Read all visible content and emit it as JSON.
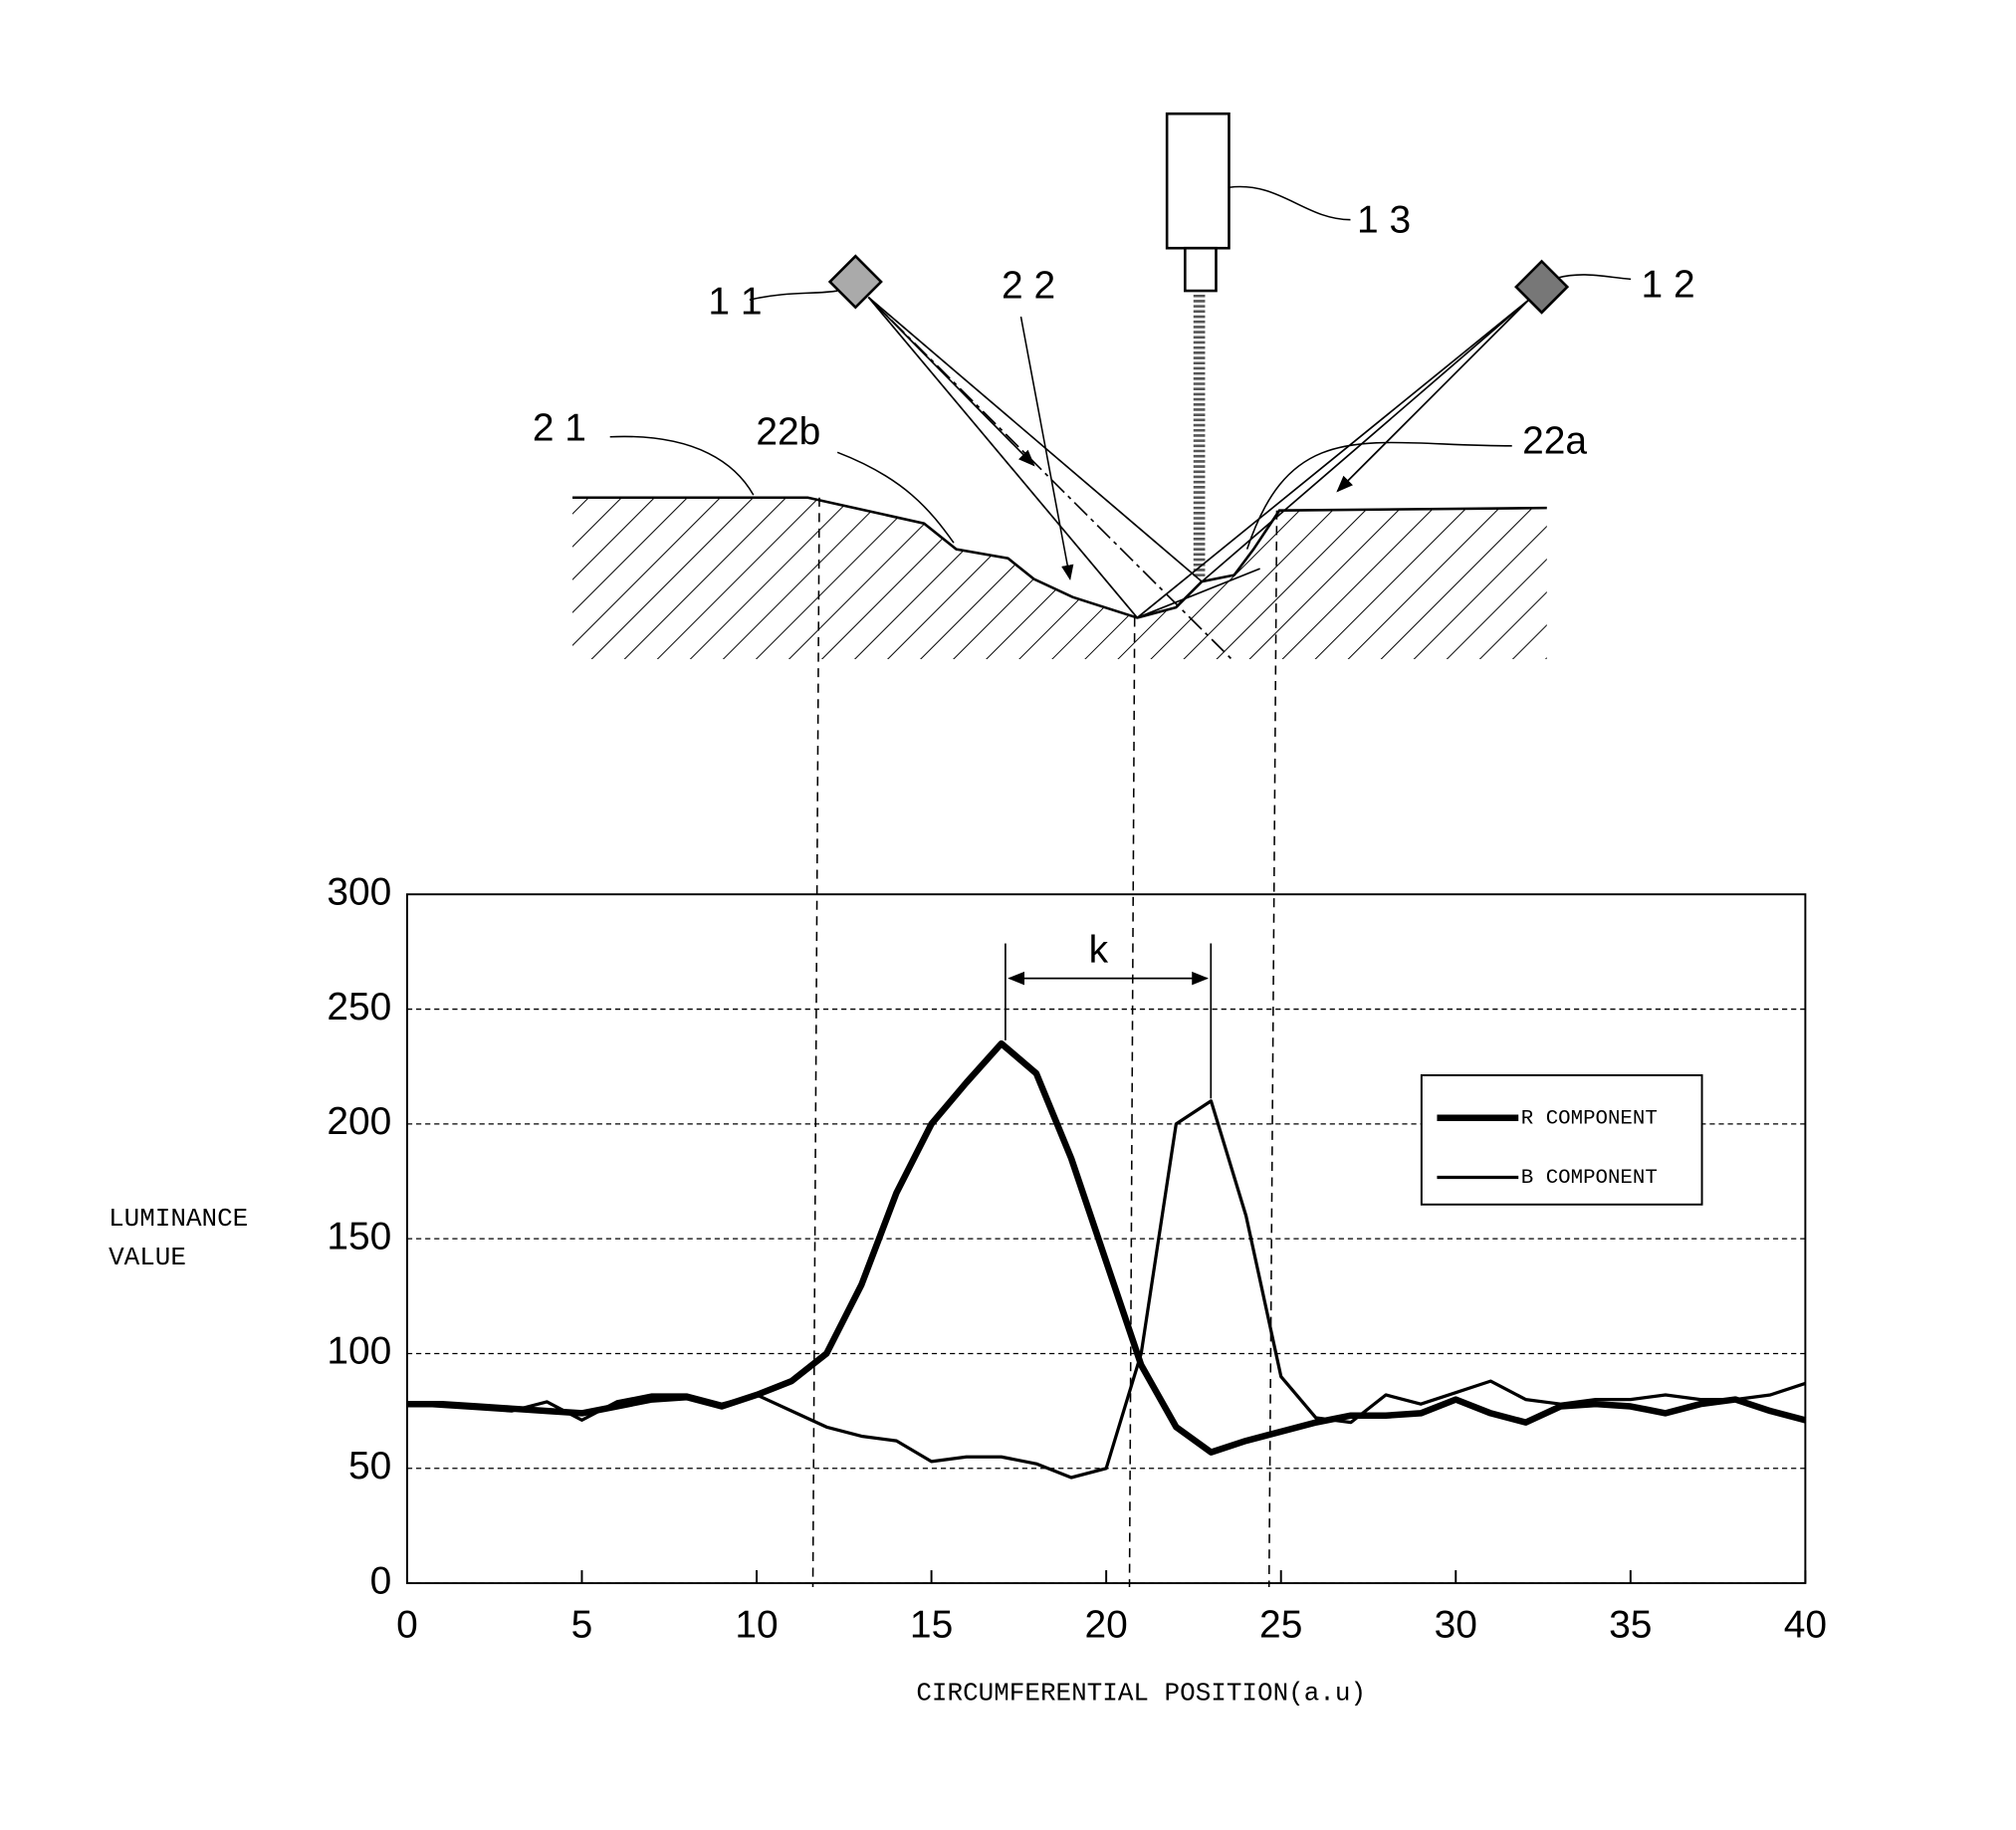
{
  "diagram": {
    "labels": [
      "1 1",
      "1 2",
      "1 3",
      "2 2",
      "2 1",
      "22b",
      "22a"
    ]
  },
  "chart_data": {
    "type": "line",
    "xlabel": "CIRCUMFERENTIAL POSITION(a.u)",
    "ylabel": [
      "LUMINANCE",
      "VALUE"
    ],
    "annotation": "k",
    "x": [
      0,
      1,
      2,
      3,
      4,
      5,
      6,
      7,
      8,
      9,
      10,
      11,
      12,
      13,
      14,
      15,
      16,
      17,
      18,
      19,
      20,
      21,
      22,
      23,
      24,
      25,
      26,
      27,
      28,
      29,
      30,
      31,
      32,
      33,
      34,
      35,
      36,
      37,
      38,
      39,
      40
    ],
    "series": [
      {
        "name": "R COMPONENT",
        "color": "#000000",
        "values": [
          78,
          78,
          77,
          76,
          75,
          74,
          77,
          80,
          81,
          77,
          82,
          88,
          100,
          130,
          170,
          200,
          218,
          235,
          222,
          185,
          140,
          95,
          68,
          57,
          62,
          66,
          70,
          73,
          73,
          74,
          80,
          74,
          70,
          77,
          78,
          77,
          74,
          78,
          80,
          75,
          71
        ]
      },
      {
        "name": "B COMPONENT",
        "color": "#000000",
        "values": [
          78,
          77,
          76,
          75,
          79,
          71,
          79,
          82,
          82,
          78,
          82,
          75,
          68,
          64,
          62,
          53,
          55,
          55,
          52,
          46,
          50,
          100,
          200,
          210,
          160,
          90,
          72,
          70,
          82,
          78,
          83,
          88,
          80,
          78,
          80,
          80,
          82,
          80,
          80,
          82,
          87
        ]
      }
    ],
    "xlim": [
      0,
      40
    ],
    "ylim": [
      0,
      300
    ],
    "xticks": [
      0,
      5,
      10,
      15,
      20,
      25,
      30,
      35,
      40
    ],
    "yticks": [
      0,
      50,
      100,
      150,
      200,
      250,
      300
    ],
    "grid": true,
    "legend": "upper right"
  }
}
